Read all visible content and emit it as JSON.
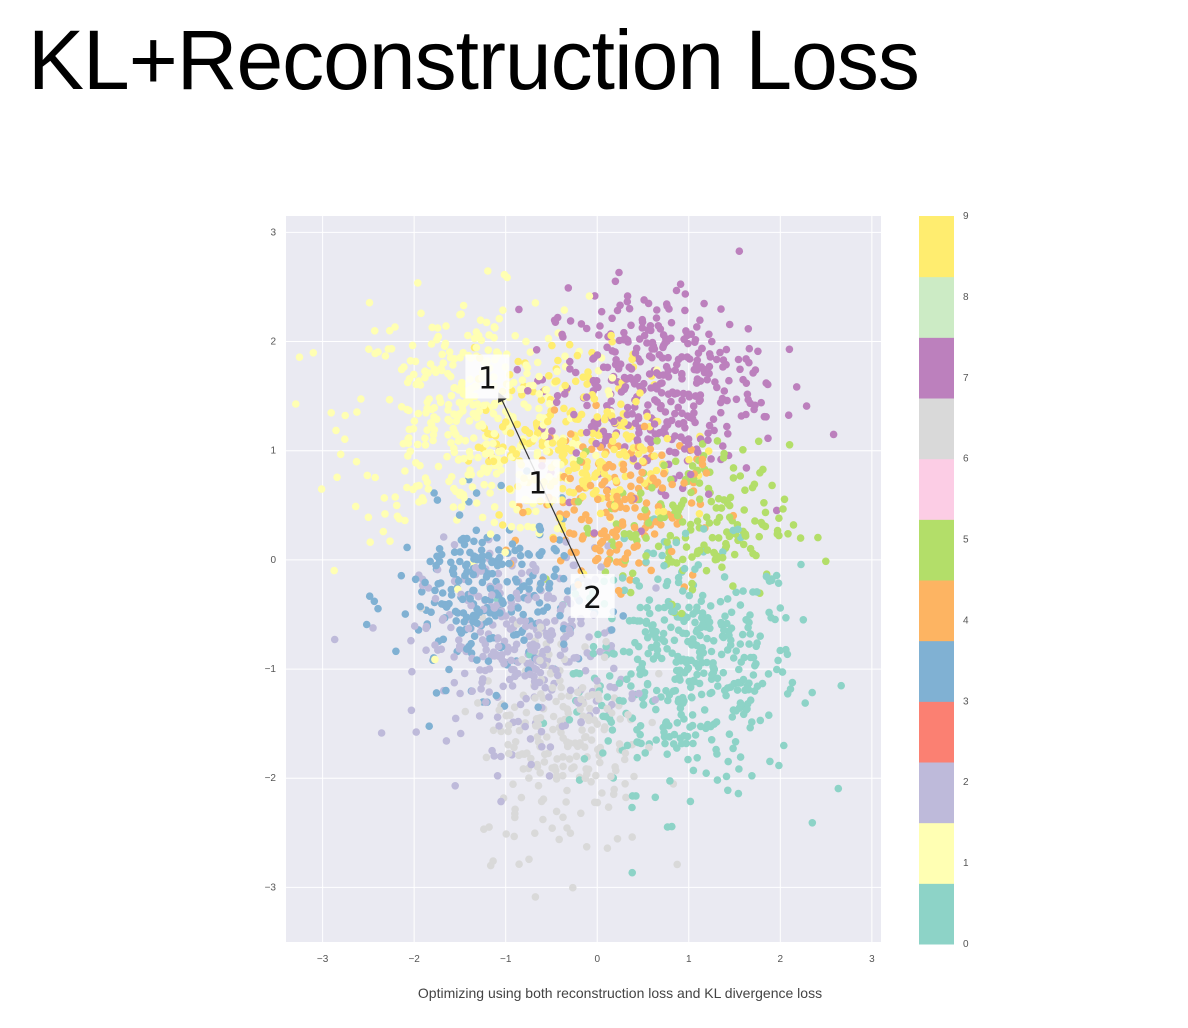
{
  "slide": {
    "title": "KL+Reconstruction Loss",
    "caption": "Optimizing using both reconstruction loss and KL divergence loss"
  },
  "chart_data": {
    "type": "scatter",
    "title": "",
    "xlabel": "",
    "ylabel": "",
    "xlim": [
      -3.4,
      3.1
    ],
    "ylim": [
      -3.5,
      3.15
    ],
    "x_ticks": [
      -3,
      -2,
      -1,
      0,
      1,
      2,
      3
    ],
    "y_ticks": [
      -3,
      -2,
      -1,
      0,
      1,
      2,
      3
    ],
    "grid": true,
    "colorbar": {
      "labels": [
        "0",
        "1",
        "2",
        "3",
        "4",
        "5",
        "6",
        "7",
        "8",
        "9"
      ],
      "colors": [
        "#8dd3c7",
        "#ffffb3",
        "#bebada",
        "#fb8072",
        "#80b1d3",
        "#fdb462",
        "#b3de69",
        "#fccde5",
        "#d9d9d9",
        "#bc80bd",
        "#ccebc5",
        "#ffed6f"
      ]
    },
    "clusters": [
      {
        "class": 0,
        "color": "#8dd3c7",
        "center": [
          1.0,
          -1.0
        ],
        "spread": [
          0.6,
          0.55
        ],
        "count": 420
      },
      {
        "class": 1,
        "color": "#ffffb3",
        "center": [
          -1.4,
          1.3
        ],
        "spread": [
          0.65,
          0.55
        ],
        "count": 380
      },
      {
        "class": 2,
        "color": "#bebada",
        "center": [
          -0.8,
          -0.8
        ],
        "spread": [
          0.55,
          0.45
        ],
        "count": 300
      },
      {
        "class": 3,
        "color": "#80b1d3",
        "center": [
          -1.2,
          -0.35
        ],
        "spread": [
          0.5,
          0.4
        ],
        "count": 250
      },
      {
        "class": 4,
        "color": "#fdb462",
        "center": [
          0.2,
          0.5
        ],
        "spread": [
          0.45,
          0.35
        ],
        "count": 170
      },
      {
        "class": 5,
        "color": "#b3de69",
        "center": [
          1.1,
          0.35
        ],
        "spread": [
          0.5,
          0.35
        ],
        "count": 180
      },
      {
        "class": 6,
        "color": "#d9d9d9",
        "center": [
          -0.4,
          -1.6
        ],
        "spread": [
          0.45,
          0.55
        ],
        "count": 220
      },
      {
        "class": 7,
        "color": "#bc80bd",
        "center": [
          0.6,
          1.6
        ],
        "spread": [
          0.6,
          0.45
        ],
        "count": 370
      },
      {
        "class": 9,
        "color": "#ffed6f",
        "center": [
          -0.2,
          1.1
        ],
        "spread": [
          0.55,
          0.4
        ],
        "count": 240
      }
    ],
    "annotations": [
      {
        "text": "1",
        "x": -1.2,
        "y": 1.68
      },
      {
        "text": "1",
        "x": -0.65,
        "y": 0.72
      },
      {
        "text": "2",
        "x": -0.05,
        "y": -0.33
      }
    ]
  }
}
